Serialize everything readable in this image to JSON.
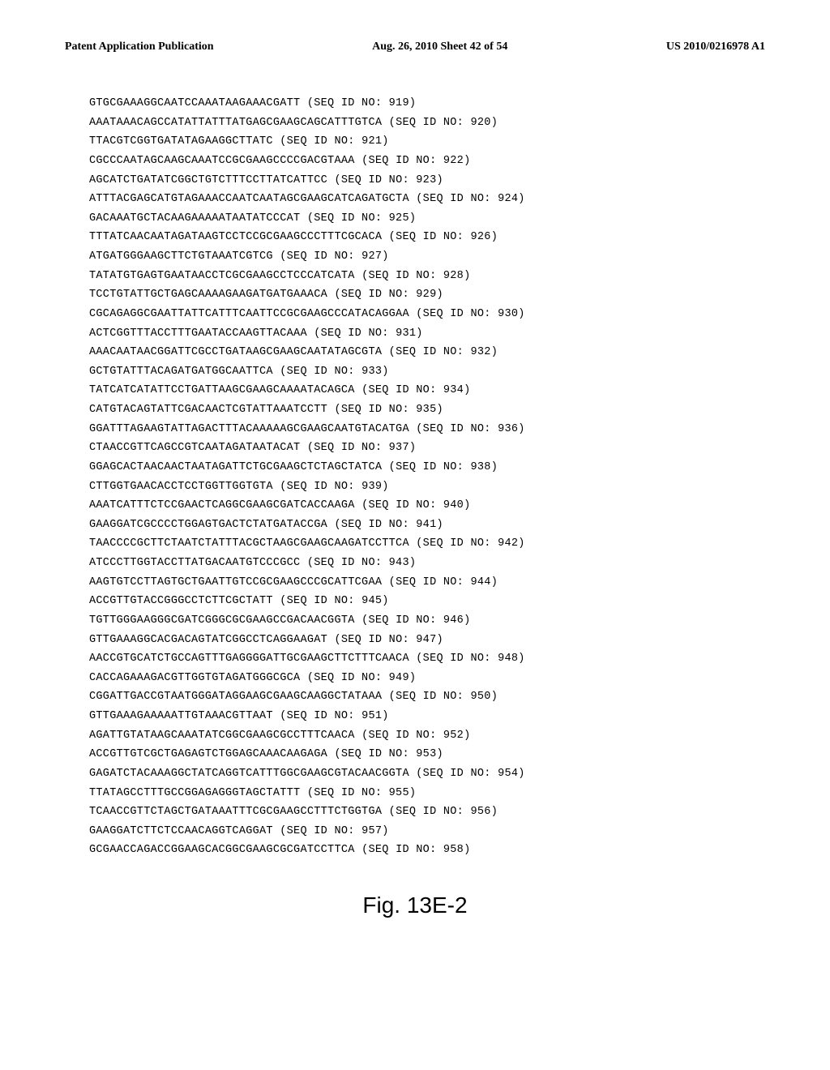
{
  "header": {
    "left": "Patent Application Publication",
    "center": "Aug. 26, 2010  Sheet 42 of 54",
    "right": "US 2010/0216978 A1"
  },
  "sequences": [
    {
      "seq": "GTGCGAAAGGCAATCCAAATAAGAAACGATT",
      "label": "(SEQ ID NO: 919)"
    },
    {
      "seq": "AAATAAACAGCCATATTATTTATGAGCGAAGCAGCATTTGTCA",
      "label": "(SEQ ID NO: 920)"
    },
    {
      "seq": "TTACGTCGGTGATATAGAAGGCTTATC",
      "label": "(SEQ ID NO: 921)"
    },
    {
      "seq": "CGCCCAATAGCAAGCAAATCCGCGAAGCCCCGACGTAAA",
      "label": "(SEQ ID NO: 922)"
    },
    {
      "seq": "AGCATCTGATATCGGCTGTCTTTCCTTATCATTCC",
      "label": "(SEQ ID NO: 923)"
    },
    {
      "seq": "ATTTACGAGCATGTAGAAACCAATCAATAGCGAAGCATCAGATGCTA",
      "label": "(SEQ ID NO: 924)"
    },
    {
      "seq": "GACAAATGCTACAAGAAAAATAATATCCCAT",
      "label": "(SEQ ID NO: 925)"
    },
    {
      "seq": "TTTATCAACAATAGATAAGTCCTCCGCGAAGCCCTTTCGCACA",
      "label": "(SEQ ID NO: 926)"
    },
    {
      "seq": "ATGATGGGAAGCTTCTGTAAATCGTCG",
      "label": "(SEQ ID NO: 927)"
    },
    {
      "seq": "TATATGTGAGTGAATAACCTCGCGAAGCCTCCCATCATA",
      "label": "(SEQ ID NO: 928)"
    },
    {
      "seq": "TCCTGTATTGCTGAGCAAAAGAAGATGATGAAACA",
      "label": "(SEQ ID NO: 929)"
    },
    {
      "seq": "CGCAGAGGCGAATTATTCATTTCAATTCCGCGAAGCCCATACAGGAA",
      "label": "(SEQ ID NO: 930)"
    },
    {
      "seq": "ACTCGGTTTACCTTTGAATACCAAGTTACAAA",
      "label": "(SEQ ID NO: 931)"
    },
    {
      "seq": "AAACAATAACGGATTCGCCTGATAAGCGAAGCAATATAGCGTA",
      "label": "(SEQ ID NO: 932)"
    },
    {
      "seq": "GCTGTATTTACAGATGATGGCAATTCA",
      "label": "(SEQ ID NO: 933)"
    },
    {
      "seq": "TATCATCATATTCCTGATTAAGCGAAGCAAAATACAGCA",
      "label": "(SEQ ID NO: 934)"
    },
    {
      "seq": "CATGTACAGTATTCGACAACTCGTATTAAATCCTT",
      "label": "(SEQ ID NO: 935)"
    },
    {
      "seq": "GGATTTAGAAGTATTAGACTTTACAAAAAGCGAAGCAATGTACATGA",
      "label": "(SEQ ID NO: 936)"
    },
    {
      "seq": "CTAACCGTTCAGCCGTCAATAGATAATACAT",
      "label": "(SEQ ID NO: 937)"
    },
    {
      "seq": "GGAGCACTAACAACTAATAGATTCTGCGAAGCTCTAGCTATCA",
      "label": "(SEQ ID NO: 938)"
    },
    {
      "seq": "CTTGGTGAACACCTCCTGGTTGGTGTA",
      "label": "(SEQ ID NO: 939)"
    },
    {
      "seq": "AAATCATTTCTCCGAACTCAGGCGAAGCGATCACCAAGA",
      "label": "(SEQ ID NO: 940)"
    },
    {
      "seq": "GAAGGATCGCCCCTGGAGTGACTCTATGATACCGA",
      "label": "(SEQ ID NO: 941)"
    },
    {
      "seq": "TAACCCCGCTTCTAATCTATTTACGCTAAGCGAAGCAAGATCCTTCA",
      "label": "(SEQ ID NO: 942)"
    },
    {
      "seq": "ATCCCTTGGTACCTTATGACAATGTCCCGCC",
      "label": "(SEQ ID NO: 943)"
    },
    {
      "seq": "AAGTGTCCTTAGTGCTGAATTGTCCGCGAAGCCCGCATTCGAA",
      "label": "(SEQ ID NO: 944)"
    },
    {
      "seq": "ACCGTTGTACCGGGCCTCTTCGCTATT",
      "label": "(SEQ ID NO: 945)"
    },
    {
      "seq": "TGTTGGGAAGGGCGATCGGGCGCGAAGCCGACAACGGTA",
      "label": "(SEQ ID NO: 946)"
    },
    {
      "seq": "GTTGAAAGGCACGACAGTATCGGCCTCAGGAAGAT",
      "label": "(SEQ ID NO: 947)"
    },
    {
      "seq": "AACCGTGCATCTGCCAGTTTGAGGGGATTGCGAAGCTTCTTTCAACA",
      "label": "(SEQ ID NO: 948)"
    },
    {
      "seq": "CACCAGAAAGACGTTGGTGTAGATGGGCGCA",
      "label": "(SEQ ID NO: 949)"
    },
    {
      "seq": "CGGATTGACCGTAATGGGATAGGAAGCGAAGCAAGGCTATAAA",
      "label": "(SEQ ID NO: 950)"
    },
    {
      "seq": "GTTGAAAGAAAAATTGTAAACGTTAAT",
      "label": "(SEQ ID NO: 951)"
    },
    {
      "seq": "AGATTGTATAAGCAAATATCGGCGAAGCGCCTTTCAACA",
      "label": "(SEQ ID NO: 952)"
    },
    {
      "seq": "ACCGTTGTCGCTGAGAGTCTGGAGCAAACAAGAGA",
      "label": "(SEQ ID NO: 953)"
    },
    {
      "seq": "GAGATCTACAAAGGCTATCAGGTCATTTGGCGAAGCGTACAACGGTA",
      "label": "(SEQ ID NO: 954)"
    },
    {
      "seq": "TTATAGCCTTTGCCGGAGAGGGTAGCTATTT",
      "label": "(SEQ ID NO: 955)"
    },
    {
      "seq": "TCAACCGTTCTAGCTGATAAATTTCGCGAAGCCTTTCTGGTGA",
      "label": "(SEQ ID NO: 956)"
    },
    {
      "seq": "GAAGGATCTTCTCCAACAGGTCAGGAT",
      "label": "(SEQ ID NO: 957)"
    },
    {
      "seq": "GCGAACCAGACCGGAAGCACGGCGAAGCGCGATCCTTCA",
      "label": "(SEQ ID NO: 958)"
    }
  ],
  "figure_label": "Fig. 13E-2"
}
